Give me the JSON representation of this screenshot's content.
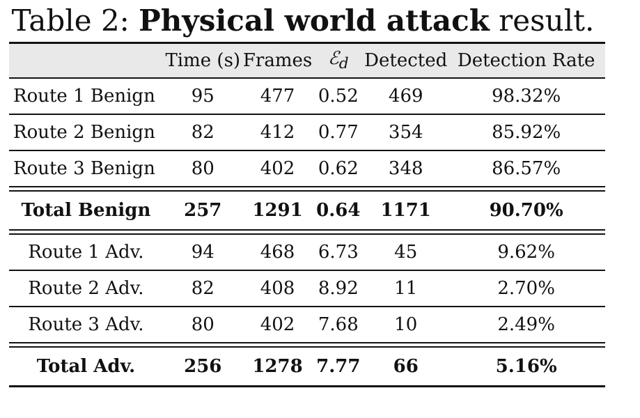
{
  "caption": {
    "prefix": "Table 2: ",
    "bold": "Physical world attack",
    "suffix": " result."
  },
  "columns": {
    "time": "Time (s)",
    "frames": "Frames",
    "error_symbol": "ℰ",
    "error_sub": "d",
    "detected": "Detected",
    "rate": "Detection Rate"
  },
  "benign_rows": [
    {
      "label": "Route 1 Benign",
      "time": "95",
      "frames": "477",
      "error": "0.52",
      "detected": "469",
      "rate": "98.32%"
    },
    {
      "label": "Route 2 Benign",
      "time": "82",
      "frames": "412",
      "error": "0.77",
      "detected": "354",
      "rate": "85.92%"
    },
    {
      "label": "Route 3 Benign",
      "time": "80",
      "frames": "402",
      "error": "0.62",
      "detected": "348",
      "rate": "86.57%"
    }
  ],
  "benign_total": {
    "label": "Total Benign",
    "time": "257",
    "frames": "1291",
    "error": "0.64",
    "detected": "1171",
    "rate": "90.70%"
  },
  "adv_rows": [
    {
      "label": "Route 1 Adv.",
      "time": "94",
      "frames": "468",
      "error": "6.73",
      "detected": "45",
      "rate": "9.62%"
    },
    {
      "label": "Route 2 Adv.",
      "time": "82",
      "frames": "408",
      "error": "8.92",
      "detected": "11",
      "rate": "2.70%"
    },
    {
      "label": "Route 3 Adv.",
      "time": "80",
      "frames": "402",
      "error": "7.68",
      "detected": "10",
      "rate": "2.49%"
    }
  ],
  "adv_total": {
    "label": "Total Adv.",
    "time": "256",
    "frames": "1278",
    "error": "7.77",
    "detected": "66",
    "rate": "5.16%"
  }
}
